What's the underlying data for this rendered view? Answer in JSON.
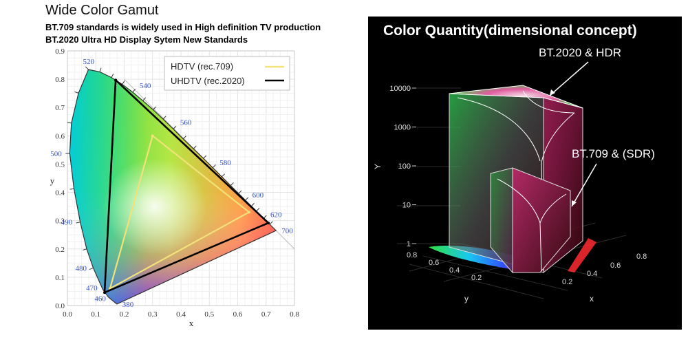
{
  "header": {
    "title": "Wide Color Gamut",
    "subtitle_1": "BT.709 standards is widely used in High definition TV production",
    "subtitle_2": "BT.2020 Ultra HD Display Sytem New Standards"
  },
  "chart_data": [
    {
      "type": "scatter",
      "xlabel": "x",
      "ylabel": "y",
      "xlim": [
        0.0,
        0.8
      ],
      "ylim": [
        0.0,
        0.9
      ],
      "xticks": [
        "0.0",
        "0.1",
        "0.2",
        "0.3",
        "0.4",
        "0.5",
        "0.6",
        "0.7",
        "0.8"
      ],
      "yticks": [
        "0.0",
        "0.1",
        "0.2",
        "0.3",
        "0.4",
        "0.5",
        "0.6",
        "0.7",
        "0.8",
        "0.9"
      ],
      "grid": true,
      "legend_position": "top-right",
      "spectral_locus": [
        {
          "label": "380",
          "x": 0.174,
          "y": 0.005
        },
        {
          "label": "460",
          "x": 0.144,
          "y": 0.03
        },
        {
          "label": "470",
          "x": 0.124,
          "y": 0.058
        },
        {
          "label": "480",
          "x": 0.091,
          "y": 0.133
        },
        {
          "label": "490",
          "x": 0.045,
          "y": 0.295
        },
        {
          "label": "500",
          "x": 0.008,
          "y": 0.538
        },
        {
          "label": "520",
          "x": 0.074,
          "y": 0.834
        },
        {
          "label": "540",
          "x": 0.23,
          "y": 0.754
        },
        {
          "label": "560",
          "x": 0.373,
          "y": 0.624
        },
        {
          "label": "580",
          "x": 0.512,
          "y": 0.487
        },
        {
          "label": "600",
          "x": 0.627,
          "y": 0.372
        },
        {
          "label": "620",
          "x": 0.691,
          "y": 0.308
        },
        {
          "label": "700",
          "x": 0.735,
          "y": 0.265
        }
      ],
      "series": [
        {
          "name": "HDTV (rec.709)",
          "color": "#f2e27a",
          "points": [
            {
              "x": 0.64,
              "y": 0.33
            },
            {
              "x": 0.3,
              "y": 0.6
            },
            {
              "x": 0.15,
              "y": 0.06
            }
          ]
        },
        {
          "name": "UHDTV (rec.2020)",
          "color": "#000000",
          "points": [
            {
              "x": 0.708,
              "y": 0.292
            },
            {
              "x": 0.17,
              "y": 0.797
            },
            {
              "x": 0.131,
              "y": 0.046
            }
          ]
        }
      ]
    },
    {
      "type": "area",
      "title": "Color Quantity(dimensional concept)",
      "xlabel": "x",
      "ylabel": "Y",
      "depth_label": "y",
      "scale": "log",
      "yticks": [
        "1",
        "10",
        "100",
        "1000",
        "10000"
      ],
      "x_ticks": [
        "0.2",
        "0.4",
        "0.6",
        "0.8"
      ],
      "y_ticks": [
        "0.8",
        "0.6",
        "0.4",
        "0.2"
      ],
      "annotations": [
        "BT.2020 & HDR",
        "BT.709 & (SDR)"
      ]
    }
  ]
}
